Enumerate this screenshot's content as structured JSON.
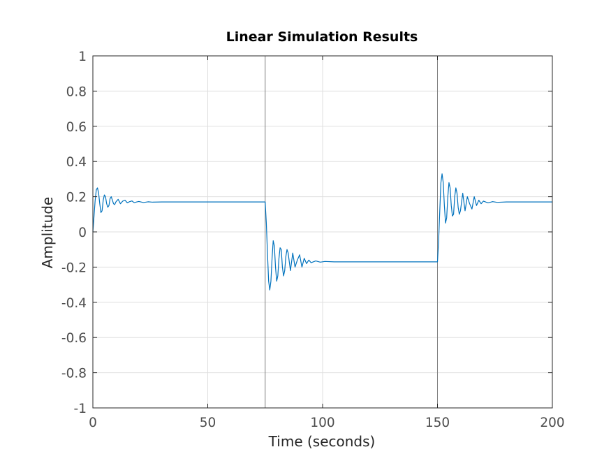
{
  "chart_data": {
    "type": "line",
    "title": "Linear Simulation Results",
    "xlabel": "Time (seconds)",
    "ylabel": "Amplitude",
    "xlim": [
      0,
      200
    ],
    "ylim": [
      -1,
      1
    ],
    "xticks": [
      0,
      50,
      100,
      150,
      200
    ],
    "xtick_labels": [
      "0",
      "50",
      "100",
      "150",
      "200"
    ],
    "yticks": [
      -1,
      -0.8,
      -0.6,
      -0.4,
      -0.2,
      0,
      0.2,
      0.4,
      0.6,
      0.8,
      1
    ],
    "ytick_labels": [
      "-1",
      "-0.8",
      "-0.6",
      "-0.4",
      "-0.2",
      "0",
      "0.2",
      "0.4",
      "0.6",
      "0.8",
      "1"
    ],
    "grid": true,
    "legend": "none",
    "input_signal": {
      "name": "",
      "color": "#808080",
      "x": [
        0,
        75,
        75,
        150,
        150,
        200
      ],
      "y": [
        1,
        1,
        -1,
        -1,
        1,
        1
      ]
    },
    "series": [
      {
        "name": "",
        "color": "#0072bd",
        "x": [
          0,
          0.5,
          1,
          1.5,
          2,
          2.5,
          3,
          3.5,
          4,
          4.5,
          5,
          5.5,
          6,
          6.5,
          7,
          7.5,
          8,
          8.5,
          9,
          9.5,
          10,
          11,
          12,
          13,
          14,
          15,
          16,
          17,
          18,
          19,
          20,
          22,
          24,
          26,
          30,
          40,
          50,
          60,
          70,
          75,
          75.5,
          76,
          76.5,
          77,
          77.5,
          78,
          78.5,
          79,
          79.5,
          80,
          80.5,
          81,
          81.5,
          82,
          82.5,
          83,
          83.5,
          84,
          84.5,
          85,
          86,
          87,
          88,
          89,
          90,
          91,
          92,
          93,
          94,
          95,
          97,
          99,
          101,
          105,
          115,
          125,
          135,
          145,
          150,
          150.5,
          151,
          151.5,
          152,
          152.5,
          153,
          153.5,
          154,
          154.5,
          155,
          155.5,
          156,
          156.5,
          157,
          157.5,
          158,
          158.5,
          159,
          159.5,
          160,
          161,
          162,
          163,
          164,
          165,
          166,
          167,
          168,
          169,
          170,
          172,
          174,
          176,
          180,
          190,
          200
        ],
        "y": [
          0,
          0.09,
          0.18,
          0.24,
          0.25,
          0.22,
          0.16,
          0.11,
          0.12,
          0.18,
          0.21,
          0.2,
          0.16,
          0.14,
          0.15,
          0.19,
          0.2,
          0.18,
          0.16,
          0.155,
          0.17,
          0.185,
          0.16,
          0.175,
          0.18,
          0.165,
          0.172,
          0.176,
          0.166,
          0.17,
          0.173,
          0.167,
          0.171,
          0.169,
          0.17,
          0.17,
          0.17,
          0.17,
          0.17,
          0.17,
          0.05,
          -0.12,
          -0.28,
          -0.33,
          -0.28,
          -0.15,
          -0.05,
          -0.08,
          -0.2,
          -0.28,
          -0.25,
          -0.15,
          -0.09,
          -0.1,
          -0.2,
          -0.25,
          -0.22,
          -0.14,
          -0.1,
          -0.12,
          -0.22,
          -0.12,
          -0.2,
          -0.16,
          -0.13,
          -0.2,
          -0.15,
          -0.18,
          -0.16,
          -0.175,
          -0.165,
          -0.172,
          -0.168,
          -0.17,
          -0.17,
          -0.17,
          -0.17,
          -0.17,
          -0.17,
          -0.05,
          0.12,
          0.28,
          0.33,
          0.28,
          0.15,
          0.05,
          0.08,
          0.2,
          0.28,
          0.25,
          0.15,
          0.09,
          0.1,
          0.2,
          0.25,
          0.22,
          0.14,
          0.1,
          0.12,
          0.22,
          0.12,
          0.2,
          0.16,
          0.13,
          0.2,
          0.15,
          0.18,
          0.16,
          0.175,
          0.165,
          0.172,
          0.168,
          0.17,
          0.17,
          0.17
        ]
      }
    ]
  }
}
